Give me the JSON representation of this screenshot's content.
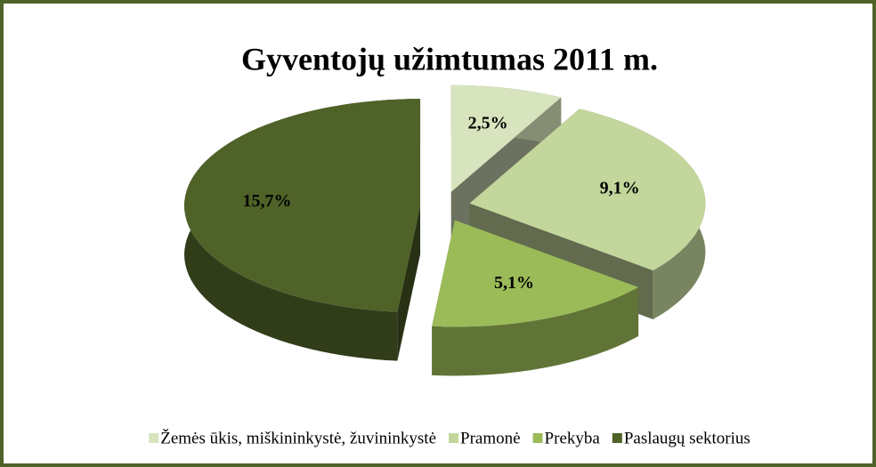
{
  "chart_data": {
    "type": "pie",
    "title": "Gyventojų užimtumas 2011 m.",
    "categories": [
      "Žemės ūkis, miškininkystė, žuvininkystė",
      "Pramonė",
      "Prekyba",
      "Paslaugų sektorius"
    ],
    "values": [
      2.5,
      9.1,
      5.1,
      15.7
    ],
    "value_labels": [
      "2,5%",
      "9,1%",
      "5,1%",
      "15,7%"
    ],
    "colors": [
      "#d7e4bd",
      "#c3d69b",
      "#9bbb59",
      "#4f6228"
    ],
    "legend": "bottom"
  }
}
